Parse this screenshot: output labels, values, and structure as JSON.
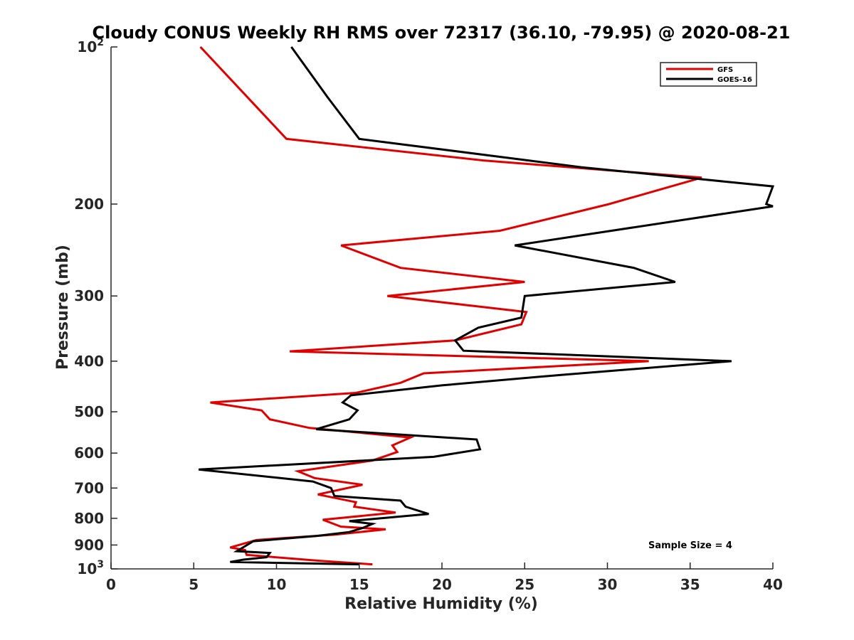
{
  "chart_data": {
    "type": "line",
    "title": "Cloudy CONUS Weekly RH RMS over 72317 (36.10, -79.95) @ 2020-08-21",
    "xlabel": "Relative Humidity (%)",
    "ylabel": "Pressure (mb)",
    "xlim": [
      0,
      40
    ],
    "ylim": [
      100,
      1000
    ],
    "y_scale": "log",
    "y_reversed": true,
    "x_ticks": [
      0,
      5,
      10,
      15,
      20,
      25,
      30,
      35,
      40
    ],
    "x_tick_labels": [
      "0",
      "5",
      "10",
      "15",
      "20",
      "25",
      "30",
      "35",
      "40"
    ],
    "y_ticks": [
      100,
      200,
      300,
      400,
      500,
      600,
      700,
      800,
      900,
      1000
    ],
    "y_tick_labels": [
      {
        "base": "10",
        "exp": "2"
      },
      {
        "base": "200",
        "exp": ""
      },
      {
        "base": "300",
        "exp": ""
      },
      {
        "base": "400",
        "exp": ""
      },
      {
        "base": "500",
        "exp": ""
      },
      {
        "base": "600",
        "exp": ""
      },
      {
        "base": "700",
        "exp": ""
      },
      {
        "base": "800",
        "exp": ""
      },
      {
        "base": "900",
        "exp": ""
      },
      {
        "base": "10",
        "exp": "3"
      }
    ],
    "grid": false,
    "legend_position": "top-right",
    "annotation": "Sample Size = 4",
    "series": [
      {
        "name": "GFS",
        "color": "#e00000",
        "points": [
          [
            5.4,
            100
          ],
          [
            10.6,
            150
          ],
          [
            22.5,
            165
          ],
          [
            35.7,
            178
          ],
          [
            30.1,
            200
          ],
          [
            23.5,
            225
          ],
          [
            13.9,
            240
          ],
          [
            17.5,
            265
          ],
          [
            25.0,
            282
          ],
          [
            16.7,
            300
          ],
          [
            25.1,
            322
          ],
          [
            24.8,
            340
          ],
          [
            20.8,
            365
          ],
          [
            10.8,
            383
          ],
          [
            32.5,
            400
          ],
          [
            18.9,
            422
          ],
          [
            17.5,
            440
          ],
          [
            14.8,
            460
          ],
          [
            6.0,
            480
          ],
          [
            9.1,
            497
          ],
          [
            9.6,
            517
          ],
          [
            12.0,
            537
          ],
          [
            18.1,
            560
          ],
          [
            17.0,
            580
          ],
          [
            17.3,
            597
          ],
          [
            15.8,
            620
          ],
          [
            11.3,
            650
          ],
          [
            12.3,
            670
          ],
          [
            15.2,
            690
          ],
          [
            12.5,
            720
          ],
          [
            14.8,
            745
          ],
          [
            14.7,
            760
          ],
          [
            17.2,
            780
          ],
          [
            12.8,
            805
          ],
          [
            13.9,
            830
          ],
          [
            16.6,
            840
          ],
          [
            13.5,
            860
          ],
          [
            8.8,
            880
          ],
          [
            7.2,
            910
          ],
          [
            8.1,
            920
          ],
          [
            8.2,
            940
          ],
          [
            9.1,
            945
          ],
          [
            12.6,
            965
          ],
          [
            15.8,
            980
          ]
        ]
      },
      {
        "name": "GOES-16",
        "color": "#000000",
        "points": [
          [
            10.9,
            100
          ],
          [
            13.1,
            125
          ],
          [
            15.0,
            150
          ],
          [
            28.4,
            170
          ],
          [
            40.0,
            185
          ],
          [
            39.6,
            200
          ],
          [
            40.0,
            202
          ],
          [
            24.4,
            240
          ],
          [
            31.6,
            265
          ],
          [
            34.1,
            282
          ],
          [
            25.0,
            300
          ],
          [
            24.8,
            330
          ],
          [
            22.2,
            345
          ],
          [
            20.8,
            365
          ],
          [
            21.3,
            382
          ],
          [
            37.5,
            400
          ],
          [
            27.2,
            425
          ],
          [
            20.0,
            445
          ],
          [
            14.5,
            465
          ],
          [
            14.0,
            480
          ],
          [
            14.9,
            497
          ],
          [
            14.4,
            517
          ],
          [
            12.4,
            540
          ],
          [
            22.1,
            565
          ],
          [
            22.3,
            590
          ],
          [
            19.5,
            610
          ],
          [
            5.3,
            645
          ],
          [
            12.2,
            680
          ],
          [
            13.3,
            700
          ],
          [
            13.5,
            725
          ],
          [
            17.5,
            740
          ],
          [
            17.8,
            760
          ],
          [
            19.2,
            785
          ],
          [
            14.4,
            810
          ],
          [
            15.8,
            820
          ],
          [
            15.2,
            835
          ],
          [
            14.4,
            850
          ],
          [
            12.4,
            865
          ],
          [
            8.6,
            885
          ],
          [
            7.6,
            925
          ],
          [
            9.6,
            932
          ],
          [
            9.4,
            950
          ],
          [
            8.0,
            960
          ],
          [
            7.2,
            970
          ],
          [
            15.0,
            980
          ]
        ]
      }
    ]
  }
}
